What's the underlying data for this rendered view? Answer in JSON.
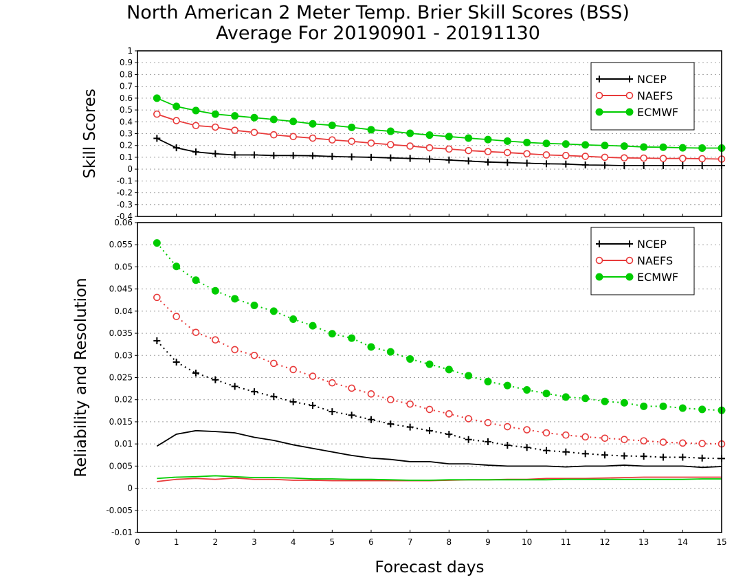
{
  "title": "North American 2 Meter Temp. Brier Skill Scores (BSS)",
  "subtitle": "Average For 20190901 - 20191130",
  "colors": {
    "NCEP": "#000000",
    "NAEFS": "#e83a3a",
    "ECMWF": "#00cc00",
    "grid": "#a0a0a0"
  },
  "chart_data": [
    {
      "type": "line",
      "ylabel": "Skill Scores",
      "ylim": [
        -0.4,
        1
      ],
      "yticks": [
        "1",
        "0.9",
        "0.8",
        "0.7",
        "0.6",
        "0.5",
        "0.4",
        "0.3",
        "0.2",
        "0.1",
        "0",
        "-0.1",
        "-0.2",
        "-0.3",
        "-0.4"
      ],
      "grid": true,
      "legend_position": "top-right",
      "x": [
        0.5,
        1,
        1.5,
        2,
        2.5,
        3,
        3.5,
        4,
        4.5,
        5,
        5.5,
        6,
        6.5,
        7,
        7.5,
        8,
        8.5,
        9,
        9.5,
        10,
        10.5,
        11,
        11.5,
        12,
        12.5,
        13,
        13.5,
        14,
        14.5,
        15
      ],
      "series": [
        {
          "name": "NCEP",
          "marker": "plus",
          "style": "solid",
          "values": [
            0.26,
            0.18,
            0.145,
            0.13,
            0.12,
            0.12,
            0.115,
            0.115,
            0.113,
            0.107,
            0.103,
            0.1,
            0.095,
            0.09,
            0.085,
            0.077,
            0.068,
            0.06,
            0.055,
            0.05,
            0.045,
            0.043,
            0.035,
            0.033,
            0.03,
            0.03,
            0.03,
            0.03,
            0.03,
            0.03
          ]
        },
        {
          "name": "NAEFS",
          "marker": "open-circle",
          "style": "solid",
          "values": [
            0.465,
            0.41,
            0.368,
            0.355,
            0.328,
            0.31,
            0.29,
            0.275,
            0.262,
            0.247,
            0.235,
            0.22,
            0.207,
            0.195,
            0.18,
            0.17,
            0.157,
            0.148,
            0.14,
            0.13,
            0.12,
            0.115,
            0.108,
            0.1,
            0.095,
            0.093,
            0.09,
            0.09,
            0.088,
            0.085
          ]
        },
        {
          "name": "ECMWF",
          "marker": "filled-circle",
          "style": "solid",
          "values": [
            0.6,
            0.53,
            0.495,
            0.465,
            0.45,
            0.435,
            0.42,
            0.403,
            0.383,
            0.37,
            0.353,
            0.333,
            0.32,
            0.303,
            0.288,
            0.275,
            0.262,
            0.25,
            0.237,
            0.225,
            0.217,
            0.212,
            0.205,
            0.2,
            0.195,
            0.187,
            0.185,
            0.18,
            0.178,
            0.178
          ]
        }
      ]
    },
    {
      "type": "line",
      "ylabel": "Reliability and Resolution",
      "xlabel": "Forecast days",
      "ylim": [
        -0.01,
        0.06
      ],
      "yticks": [
        "0.06",
        "0.055",
        "0.05",
        "0.045",
        "0.04",
        "0.035",
        "0.03",
        "0.025",
        "0.02",
        "0.015",
        "0.01",
        "0.005",
        "0",
        "-0.005",
        "-0.01"
      ],
      "xlim": [
        0,
        15
      ],
      "xticks": [
        "0",
        "1",
        "2",
        "3",
        "4",
        "5",
        "6",
        "7",
        "8",
        "9",
        "10",
        "11",
        "12",
        "13",
        "14",
        "15"
      ],
      "grid": true,
      "legend_position": "top-right",
      "x": [
        0.5,
        1,
        1.5,
        2,
        2.5,
        3,
        3.5,
        4,
        4.5,
        5,
        5.5,
        6,
        6.5,
        7,
        7.5,
        8,
        8.5,
        9,
        9.5,
        10,
        10.5,
        11,
        11.5,
        12,
        12.5,
        13,
        13.5,
        14,
        14.5,
        15
      ],
      "series": [
        {
          "name": "NCEP",
          "kind": "resolution",
          "marker": "plus",
          "style": "dotted",
          "values": [
            0.0333,
            0.0285,
            0.026,
            0.0245,
            0.023,
            0.0218,
            0.0207,
            0.0195,
            0.0187,
            0.0173,
            0.0165,
            0.0155,
            0.0145,
            0.0138,
            0.013,
            0.0122,
            0.011,
            0.0105,
            0.0097,
            0.0092,
            0.0085,
            0.0082,
            0.0078,
            0.0075,
            0.0073,
            0.0072,
            0.007,
            0.007,
            0.0068,
            0.0067
          ]
        },
        {
          "name": "NAEFS",
          "kind": "resolution",
          "marker": "open-circle",
          "style": "dotted",
          "values": [
            0.0431,
            0.0388,
            0.0352,
            0.0335,
            0.0313,
            0.03,
            0.0282,
            0.0268,
            0.0253,
            0.0238,
            0.0226,
            0.0213,
            0.02,
            0.019,
            0.0178,
            0.0168,
            0.0157,
            0.0148,
            0.0139,
            0.0132,
            0.0125,
            0.012,
            0.0116,
            0.0113,
            0.011,
            0.0107,
            0.0104,
            0.0102,
            0.0101,
            0.01
          ]
        },
        {
          "name": "ECMWF",
          "kind": "resolution",
          "marker": "filled-circle",
          "style": "dotted",
          "values": [
            0.0554,
            0.0501,
            0.047,
            0.0446,
            0.0428,
            0.0413,
            0.04,
            0.0382,
            0.0367,
            0.0349,
            0.0339,
            0.0319,
            0.0308,
            0.0292,
            0.028,
            0.0268,
            0.0254,
            0.0241,
            0.0232,
            0.0222,
            0.0214,
            0.0206,
            0.0203,
            0.0196,
            0.0193,
            0.0185,
            0.0185,
            0.0181,
            0.0178,
            0.0176
          ]
        },
        {
          "name": "NCEP",
          "kind": "reliability",
          "marker": "none",
          "style": "solid",
          "values": [
            0.0095,
            0.0122,
            0.013,
            0.0128,
            0.0125,
            0.0115,
            0.0108,
            0.0098,
            0.009,
            0.0082,
            0.0074,
            0.0068,
            0.0065,
            0.006,
            0.006,
            0.0055,
            0.0055,
            0.0052,
            0.005,
            0.005,
            0.005,
            0.0048,
            0.005,
            0.005,
            0.0052,
            0.005,
            0.005,
            0.005,
            0.0047,
            0.0049
          ]
        },
        {
          "name": "NAEFS",
          "kind": "reliability",
          "marker": "none",
          "style": "solid",
          "values": [
            0.0015,
            0.002,
            0.0022,
            0.002,
            0.0023,
            0.002,
            0.002,
            0.0018,
            0.0018,
            0.0017,
            0.0017,
            0.0017,
            0.0017,
            0.0017,
            0.0017,
            0.0018,
            0.0019,
            0.0019,
            0.002,
            0.002,
            0.0022,
            0.0022,
            0.0022,
            0.0023,
            0.0024,
            0.0025,
            0.0025,
            0.0025,
            0.0025,
            0.0025
          ]
        },
        {
          "name": "ECMWF",
          "kind": "reliability",
          "marker": "none",
          "style": "solid",
          "values": [
            0.0022,
            0.0025,
            0.0026,
            0.0028,
            0.0026,
            0.0024,
            0.0024,
            0.0023,
            0.0021,
            0.0021,
            0.002,
            0.002,
            0.0019,
            0.0018,
            0.0018,
            0.0019,
            0.0019,
            0.0019,
            0.0019,
            0.0019,
            0.0019,
            0.002,
            0.002,
            0.002,
            0.002,
            0.002,
            0.002,
            0.002,
            0.0021,
            0.0021
          ]
        }
      ]
    }
  ]
}
